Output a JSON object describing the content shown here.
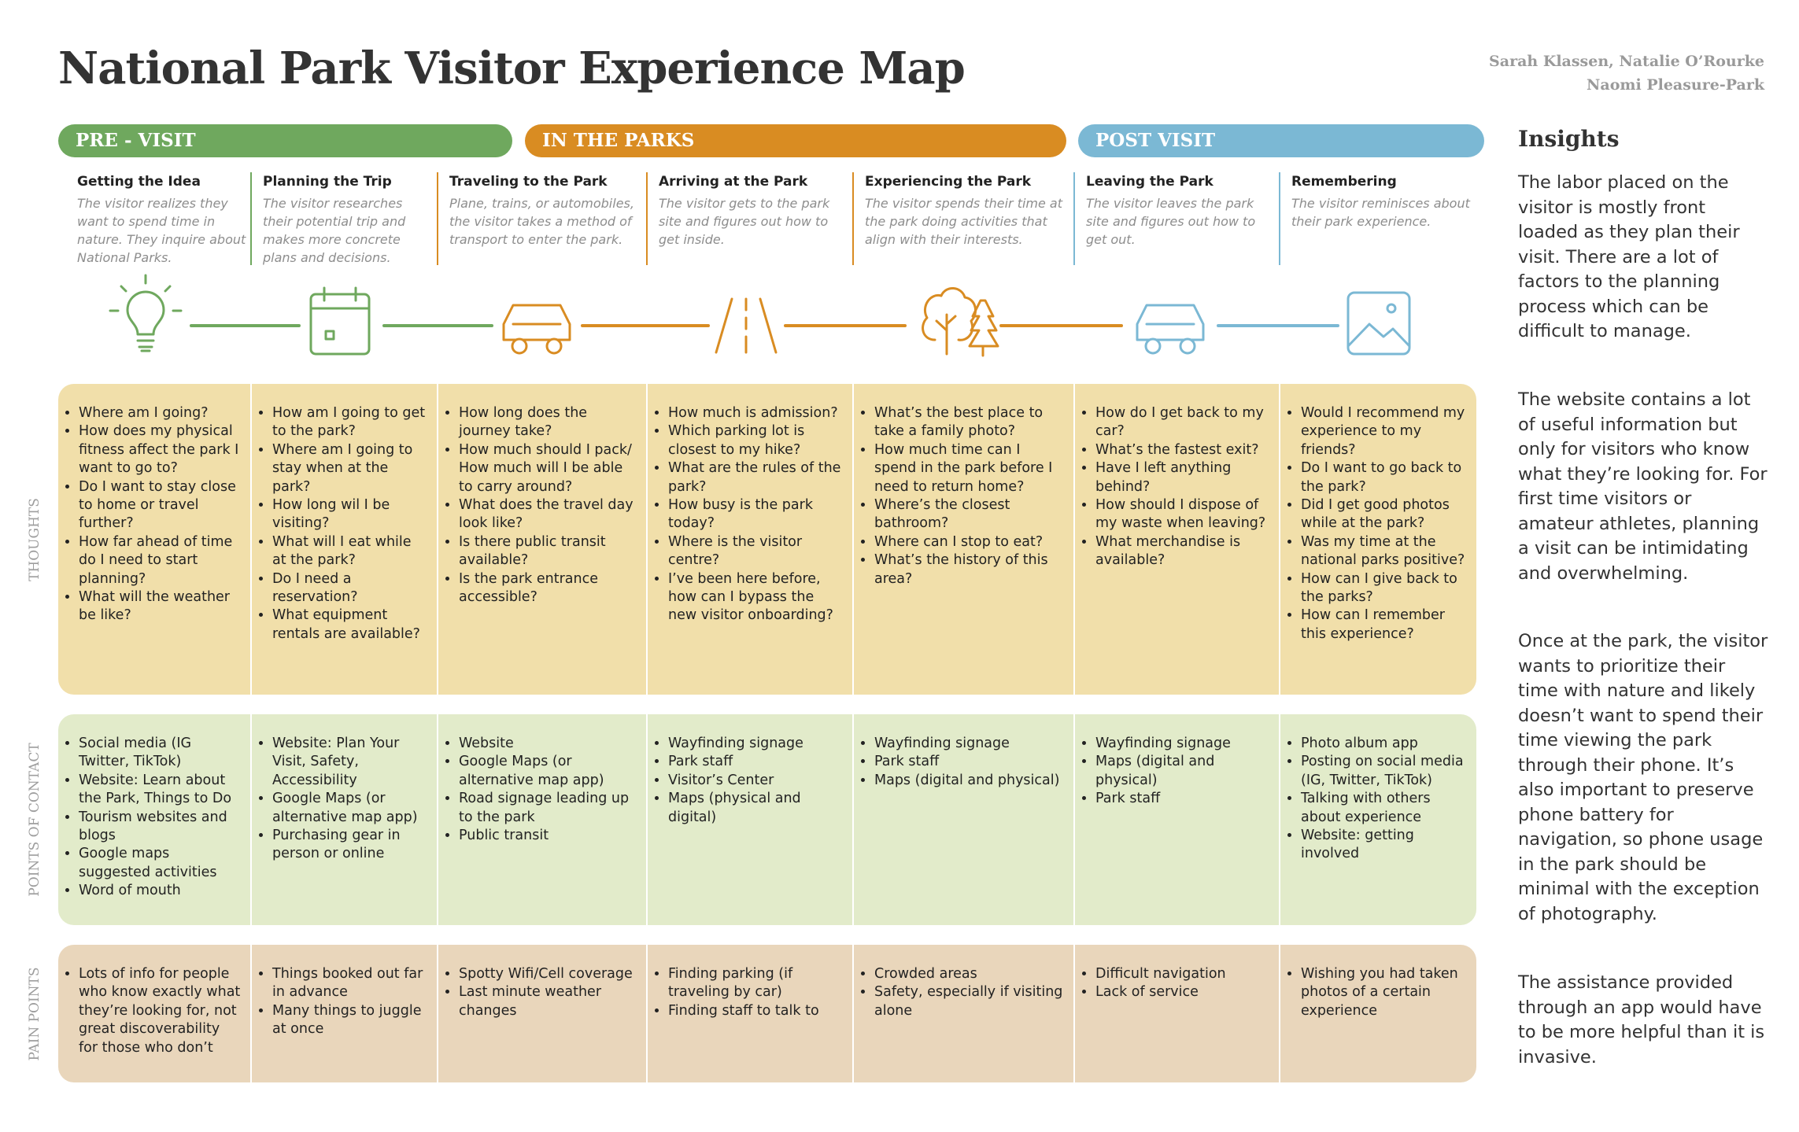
{
  "title": "National Park Visitor Experience Map",
  "authors": [
    "Sarah Klassen, Natalie O’Rourke",
    "Naomi Pleasure-Park"
  ],
  "phases": [
    "PRE - VISIT",
    "IN THE PARKS",
    "POST VISIT"
  ],
  "stages": [
    {
      "title": "Getting the Idea",
      "description": "The visitor realizes they want to spend time in nature. They inquire about National Parks."
    },
    {
      "title": "Planning the Trip",
      "description": "The visitor researches their potential trip and makes more concrete plans and decisions."
    },
    {
      "title": "Traveling to the Park",
      "description": "Plane, trains, or automobiles, the visitor takes a method of transport to enter the park."
    },
    {
      "title": "Arriving at the Park",
      "description": "The visitor gets to the park site and figures out how to get inside."
    },
    {
      "title": "Experiencing the Park",
      "description": "The visitor spends their time at the park doing activities that align with their interests."
    },
    {
      "title": "Leaving the Park",
      "description": "The visitor leaves the park site and figures out how to get out."
    },
    {
      "title": "Remembering",
      "description": "The visitor reminisces about their park experience."
    }
  ],
  "rows": [
    {
      "label": "THOUGHTS",
      "cells": [
        [
          "Where am I going?",
          "How does my physical fitness affect the park I want to go to?",
          "Do I want to stay close to home or travel further?",
          "How far ahead of time do I need to start planning?",
          "What will the weather be like?"
        ],
        [
          "How am I going to get to the park?",
          "Where am I going to stay when at the park?",
          "How long wil I be visiting?",
          "What will I eat while at the park?",
          "Do I need a reservation?",
          "What equipment rentals are available?"
        ],
        [
          "How long does the journey take?",
          "How much should I pack/ How much will I be able to carry around?",
          "What does the travel day look like?",
          "Is there public transit available?",
          "Is the park entrance accessible?"
        ],
        [
          "How much is admission?",
          "Which parking lot is closest to my hike?",
          "What are the rules of the park?",
          "How busy is the park today?",
          "Where is the visitor centre?",
          "I’ve been here before, how can I bypass the new visitor onboarding?"
        ],
        [
          "What’s the best place to take a family photo?",
          "How much time can I spend in the park before I need to return home?",
          "Where’s the closest bathroom?",
          "Where can I stop to eat?",
          "What’s the history of this area?"
        ],
        [
          "How do I get back to my car?",
          "What’s the fastest exit?",
          "Have I left anything behind?",
          "How should I dispose of my waste when leaving?",
          "What merchandise is available?"
        ],
        [
          "Would I recommend my experience to my friends?",
          "Do I want to go back to the park?",
          "Did I get good photos while at the park?",
          "Was my time at the national parks positive?",
          "How can I give back to the parks?",
          "How can I remember this experience?"
        ]
      ]
    },
    {
      "label": "POINTS OF CONTACT",
      "cells": [
        [
          "Social media (IG Twitter, TikTok)",
          "Website: Learn about the Park, Things to Do",
          "Tourism websites and blogs",
          "Google maps suggested activities",
          "Word of mouth"
        ],
        [
          "Website: Plan Your Visit, Safety, Accessibility",
          "Google Maps (or alternative map app)",
          "Purchasing gear in person or online"
        ],
        [
          "Website",
          "Google Maps (or alternative map app)",
          "Road signage leading up to the park",
          "Public transit"
        ],
        [
          "Wayfinding signage",
          "Park staff",
          "Visitor’s Center",
          "Maps (physical and digital)"
        ],
        [
          "Wayfinding signage",
          "Park staff",
          "Maps (digital and physical)"
        ],
        [
          "Wayfinding signage",
          "Maps (digital and physical)",
          "Park staff"
        ],
        [
          "Photo album app",
          "Posting on social media (IG, Twitter, TikTok)",
          "Talking with others about experience",
          "Website: getting involved"
        ]
      ]
    },
    {
      "label": "PAIN POINTS",
      "cells": [
        [
          "Lots of info for people who know exactly what they’re looking for, not great discoverability for those who don’t"
        ],
        [
          "Things booked out far in advance",
          "Many things to juggle at once"
        ],
        [
          "Spotty Wifi/Cell coverage",
          "Last minute weather changes"
        ],
        [
          "Finding parking (if traveling by car)",
          "Finding staff to talk to"
        ],
        [
          "Crowded areas",
          "Safety, especially if visiting alone"
        ],
        [
          "Difficult navigation",
          "Lack of service"
        ],
        [
          "Wishing you had taken photos of a certain experience"
        ]
      ]
    }
  ],
  "insights": {
    "title": "Insights",
    "paragraphs": [
      "The labor placed on the visitor is mostly front loaded as they plan their visit. There are a lot of factors to the planning process which can be difficult to manage.",
      "The website contains a lot of useful information but only for visitors who know what they’re looking for. For first time visitors or amateur athletes, planning a visit can be intimidating and overwhelming.",
      "Once at the park, the visitor wants to prioritize their time with nature and likely doesn’t want to spend their time viewing the park through their phone. It’s also important to preserve phone battery for navigation, so phone usage in the park should be minimal with the exception of photography.",
      "The assistance provided through an app would have to be more helpful than it is invasive."
    ]
  }
}
